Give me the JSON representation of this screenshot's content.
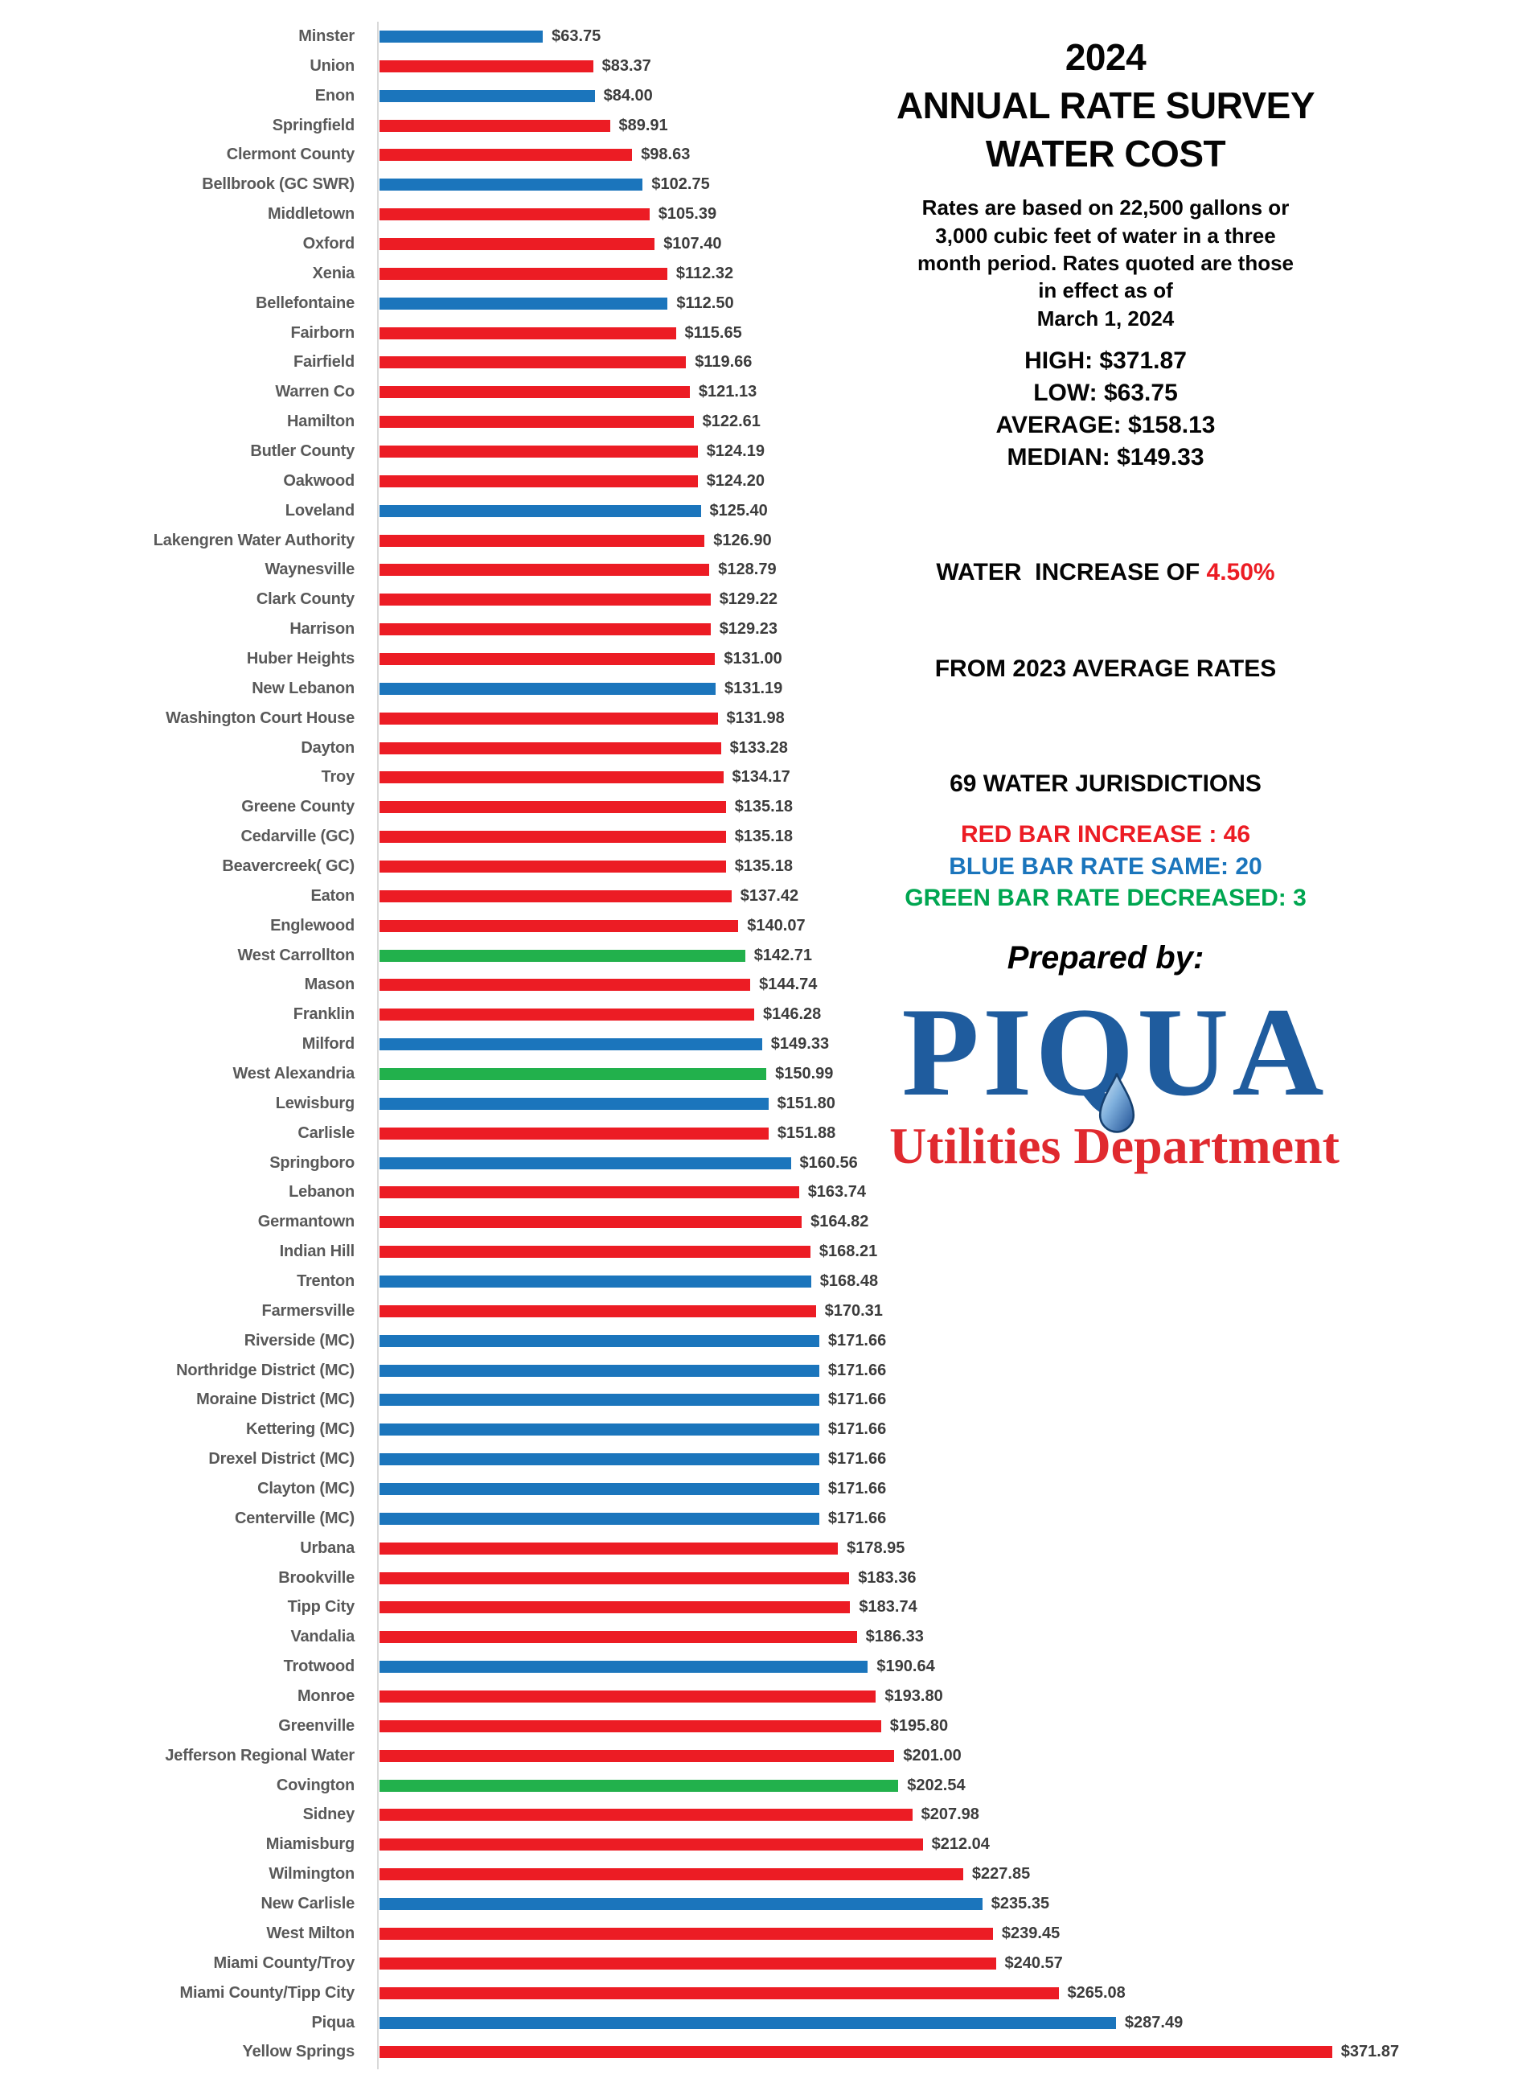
{
  "header": {
    "title_lines": [
      "2024",
      "ANNUAL RATE SURVEY",
      "WATER COST"
    ],
    "description_lines": [
      "Rates are based on 22,500 gallons or",
      "3,000 cubic feet of water in a three",
      "month period. Rates quoted are those",
      "in effect as of",
      "March 1, 2024"
    ],
    "stats_lines": [
      "HIGH: $371.87",
      "LOW: $63.75",
      "AVERAGE: $158.13",
      "MEDIAN: $149.33"
    ],
    "increase_line1_prefix": "WATER  INCREASE OF ",
    "increase_line1_highlight": "4.50%",
    "increase_line2": "FROM 2023 AVERAGE RATES",
    "jurisdictions_line": "69 WATER JURISDICTIONS",
    "legend": [
      {
        "text": "RED BAR INCREASE : 46",
        "color": "#EC1C24"
      },
      {
        "text": "BLUE BAR RATE SAME: 20",
        "color": "#1B75BC"
      },
      {
        "text": "GREEN BAR RATE DECREASED: 3",
        "color": "#00A651"
      }
    ],
    "prepared_by": "Prepared by:",
    "logo": {
      "name_text": "PIQUA",
      "subtitle": "Utilities Department",
      "name_color": "#1F5C9E",
      "subtitle_color": "#E02A2F"
    }
  },
  "chart_data": {
    "type": "bar",
    "orientation": "horizontal",
    "title": "2024 Annual Rate Survey Water Cost",
    "xlabel": "",
    "ylabel": "",
    "xlim": [
      0,
      380
    ],
    "grid": false,
    "value_prefix": "$",
    "colors": {
      "red": "#EC1C24",
      "blue": "#1B75BC",
      "green": "#22B14C"
    },
    "color_meaning": {
      "red": "rate increase",
      "blue": "rate same",
      "green": "rate decreased"
    },
    "rows": [
      {
        "name": "Minster",
        "value": 63.75,
        "color": "blue"
      },
      {
        "name": "Union",
        "value": 83.37,
        "color": "red"
      },
      {
        "name": "Enon",
        "value": 84.0,
        "color": "blue"
      },
      {
        "name": "Springfield",
        "value": 89.91,
        "color": "red"
      },
      {
        "name": "Clermont County",
        "value": 98.63,
        "color": "red"
      },
      {
        "name": "Bellbrook (GC SWR)",
        "value": 102.75,
        "color": "blue"
      },
      {
        "name": "Middletown",
        "value": 105.39,
        "color": "red"
      },
      {
        "name": "Oxford",
        "value": 107.4,
        "color": "red"
      },
      {
        "name": "Xenia",
        "value": 112.32,
        "color": "red"
      },
      {
        "name": "Bellefontaine",
        "value": 112.5,
        "color": "blue"
      },
      {
        "name": "Fairborn",
        "value": 115.65,
        "color": "red"
      },
      {
        "name": "Fairfield",
        "value": 119.66,
        "color": "red"
      },
      {
        "name": "Warren Co",
        "value": 121.13,
        "color": "red"
      },
      {
        "name": "Hamilton",
        "value": 122.61,
        "color": "red"
      },
      {
        "name": "Butler County",
        "value": 124.19,
        "color": "red"
      },
      {
        "name": "Oakwood",
        "value": 124.2,
        "color": "red"
      },
      {
        "name": "Loveland",
        "value": 125.4,
        "color": "blue"
      },
      {
        "name": "Lakengren Water Authority",
        "value": 126.9,
        "color": "red"
      },
      {
        "name": "Waynesville",
        "value": 128.79,
        "color": "red"
      },
      {
        "name": "Clark County",
        "value": 129.22,
        "color": "red"
      },
      {
        "name": "Harrison",
        "value": 129.23,
        "color": "red"
      },
      {
        "name": "Huber Heights",
        "value": 131.0,
        "color": "red"
      },
      {
        "name": "New Lebanon",
        "value": 131.19,
        "color": "blue"
      },
      {
        "name": "Washington Court House",
        "value": 131.98,
        "color": "red"
      },
      {
        "name": "Dayton",
        "value": 133.28,
        "color": "red"
      },
      {
        "name": "Troy",
        "value": 134.17,
        "color": "red"
      },
      {
        "name": "Greene County",
        "value": 135.18,
        "color": "red"
      },
      {
        "name": "Cedarville (GC)",
        "value": 135.18,
        "color": "red"
      },
      {
        "name": "Beavercreek( GC)",
        "value": 135.18,
        "color": "red"
      },
      {
        "name": "Eaton",
        "value": 137.42,
        "color": "red"
      },
      {
        "name": "Englewood",
        "value": 140.07,
        "color": "red"
      },
      {
        "name": "West Carrollton",
        "value": 142.71,
        "color": "green"
      },
      {
        "name": "Mason",
        "value": 144.74,
        "color": "red"
      },
      {
        "name": "Franklin",
        "value": 146.28,
        "color": "red"
      },
      {
        "name": "Milford",
        "value": 149.33,
        "color": "blue"
      },
      {
        "name": "West Alexandria",
        "value": 150.99,
        "color": "green"
      },
      {
        "name": "Lewisburg",
        "value": 151.8,
        "color": "blue"
      },
      {
        "name": "Carlisle",
        "value": 151.88,
        "color": "red"
      },
      {
        "name": "Springboro",
        "value": 160.56,
        "color": "blue"
      },
      {
        "name": "Lebanon",
        "value": 163.74,
        "color": "red"
      },
      {
        "name": "Germantown",
        "value": 164.82,
        "color": "red"
      },
      {
        "name": "Indian Hill",
        "value": 168.21,
        "color": "red"
      },
      {
        "name": "Trenton",
        "value": 168.48,
        "color": "blue"
      },
      {
        "name": "Farmersville",
        "value": 170.31,
        "color": "red"
      },
      {
        "name": "Riverside (MC)",
        "value": 171.66,
        "color": "blue"
      },
      {
        "name": "Northridge District (MC)",
        "value": 171.66,
        "color": "blue"
      },
      {
        "name": "Moraine District (MC)",
        "value": 171.66,
        "color": "blue"
      },
      {
        "name": "Kettering (MC)",
        "value": 171.66,
        "color": "blue"
      },
      {
        "name": "Drexel District (MC)",
        "value": 171.66,
        "color": "blue"
      },
      {
        "name": "Clayton (MC)",
        "value": 171.66,
        "color": "blue"
      },
      {
        "name": "Centerville (MC)",
        "value": 171.66,
        "color": "blue"
      },
      {
        "name": "Urbana",
        "value": 178.95,
        "color": "red"
      },
      {
        "name": "Brookville",
        "value": 183.36,
        "color": "red"
      },
      {
        "name": "Tipp City",
        "value": 183.74,
        "color": "red"
      },
      {
        "name": "Vandalia",
        "value": 186.33,
        "color": "red"
      },
      {
        "name": "Trotwood",
        "value": 190.64,
        "color": "blue"
      },
      {
        "name": "Monroe",
        "value": 193.8,
        "color": "red"
      },
      {
        "name": "Greenville",
        "value": 195.8,
        "color": "red"
      },
      {
        "name": "Jefferson Regional Water",
        "value": 201.0,
        "color": "red"
      },
      {
        "name": "Covington",
        "value": 202.54,
        "color": "green"
      },
      {
        "name": "Sidney",
        "value": 207.98,
        "color": "red"
      },
      {
        "name": "Miamisburg",
        "value": 212.04,
        "color": "red"
      },
      {
        "name": "Wilmington",
        "value": 227.85,
        "color": "red"
      },
      {
        "name": "New Carlisle",
        "value": 235.35,
        "color": "blue"
      },
      {
        "name": "West Milton",
        "value": 239.45,
        "color": "red"
      },
      {
        "name": "Miami County/Troy",
        "value": 240.57,
        "color": "red"
      },
      {
        "name": "Miami County/Tipp City",
        "value": 265.08,
        "color": "red"
      },
      {
        "name": "Piqua",
        "value": 287.49,
        "color": "blue"
      },
      {
        "name": "Yellow Springs",
        "value": 371.87,
        "color": "red"
      }
    ]
  }
}
